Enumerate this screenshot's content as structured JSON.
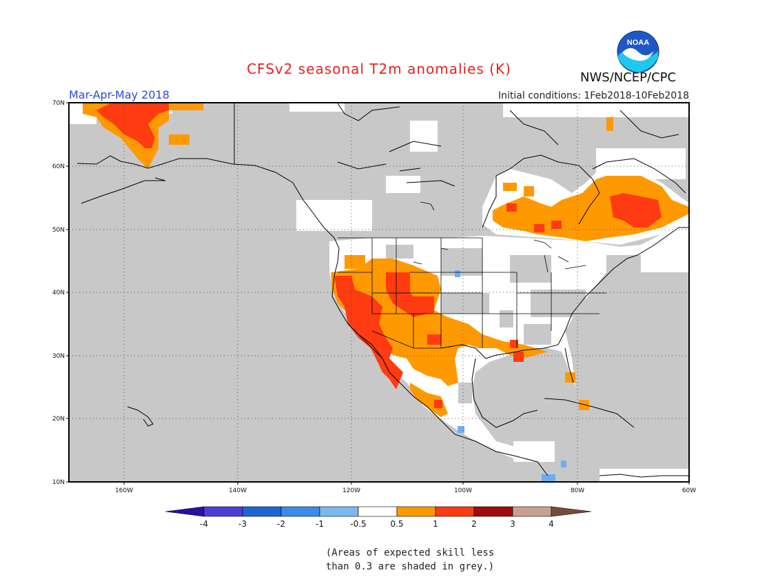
{
  "header": {
    "title": "CFSv2 seasonal T2m anomalies (K)",
    "season": "Mar-Apr-May 2018",
    "initial_conditions": "Initial conditions: 1Feb2018-10Feb2018",
    "agency": "NWS/NCEP/CPC",
    "logo_text": "NOAA"
  },
  "map": {
    "lat_labels": [
      "70N",
      "60N",
      "50N",
      "40N",
      "30N",
      "20N",
      "10N"
    ],
    "lon_labels": [
      "160W",
      "140W",
      "120W",
      "100W",
      "80W",
      "60W"
    ],
    "colors": {
      "ocean_grey": "#c8c8c8",
      "no_skill_grey": "#c8c8c8",
      "land_white": "#ffffff",
      "anom_0p5_1": "#ff9900",
      "anom_1_2": "#ff3b12",
      "anom_neg": "#6aaef5",
      "coast": "#000000"
    }
  },
  "colorbar": {
    "labels": [
      "-4",
      "-3",
      "-2",
      "-1",
      "-0.5",
      "0.5",
      "1",
      "2",
      "3",
      "4"
    ],
    "colors": [
      "#2a0fa0",
      "#4b3fd8",
      "#1e64d2",
      "#3b8ce8",
      "#7bb8f0",
      "#ffffff",
      "#ff9900",
      "#ff3b12",
      "#a00c0c",
      "#c8a090",
      "#7a4a3a"
    ]
  },
  "note": {
    "line1": "(Areas of expected skill less",
    "line2": "than 0.3 are shaded in grey.)"
  }
}
